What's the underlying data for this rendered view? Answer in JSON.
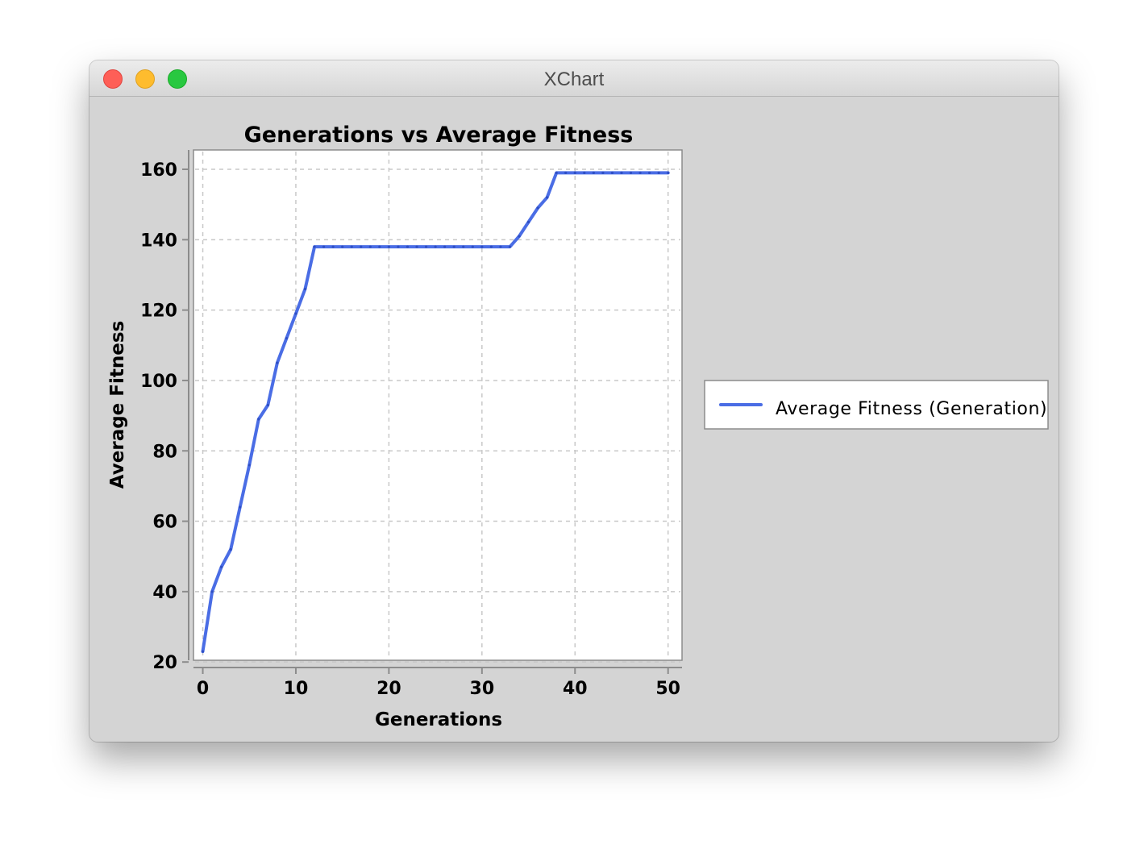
{
  "window": {
    "title": "XChart"
  },
  "colors": {
    "series": "#4a6de5",
    "plot_background": "#ffffff",
    "chart_background": "#d4d4d4",
    "grid": "#c8c8c8"
  },
  "chart_data": {
    "type": "line",
    "title": "Generations vs Average Fitness",
    "xlabel": "Generations",
    "ylabel": "Average Fitness",
    "xlim": [
      -1,
      51.5
    ],
    "ylim": [
      20.5,
      165.5
    ],
    "xticks": [
      0,
      10,
      20,
      30,
      40,
      50
    ],
    "yticks": [
      20,
      40,
      60,
      80,
      100,
      120,
      140,
      160
    ],
    "grid": true,
    "legend_position": "right",
    "series": [
      {
        "name": "Average Fitness (Generation)",
        "x": [
          0,
          1,
          2,
          3,
          4,
          5,
          6,
          7,
          8,
          9,
          10,
          11,
          12,
          13,
          14,
          15,
          16,
          17,
          18,
          19,
          20,
          21,
          22,
          23,
          24,
          25,
          26,
          27,
          28,
          29,
          30,
          31,
          32,
          33,
          34,
          35,
          36,
          37,
          38,
          39,
          40,
          41,
          42,
          43,
          44,
          45,
          46,
          47,
          48,
          49,
          50
        ],
        "y": [
          23,
          40,
          47,
          52,
          64,
          76,
          89,
          93,
          105,
          112,
          119,
          126,
          138,
          138,
          138,
          138,
          138,
          138,
          138,
          138,
          138,
          138,
          138,
          138,
          138,
          138,
          138,
          138,
          138,
          138,
          138,
          138,
          138,
          138,
          141,
          145,
          149,
          152,
          159,
          159,
          159,
          159,
          159,
          159,
          159,
          159,
          159,
          159,
          159,
          159,
          159
        ]
      }
    ]
  }
}
